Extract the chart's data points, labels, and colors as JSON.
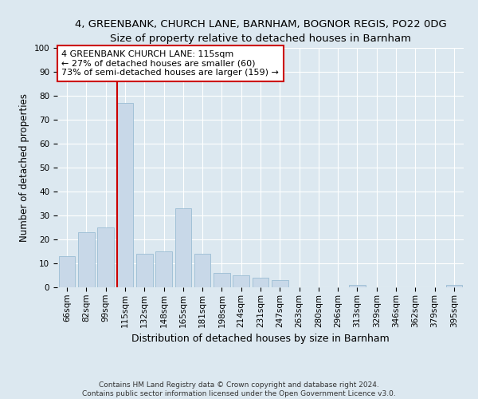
{
  "title": "4, GREENBANK, CHURCH LANE, BARNHAM, BOGNOR REGIS, PO22 0DG",
  "subtitle": "Size of property relative to detached houses in Barnham",
  "xlabel": "Distribution of detached houses by size in Barnham",
  "ylabel": "Number of detached properties",
  "categories": [
    "66sqm",
    "82sqm",
    "99sqm",
    "115sqm",
    "132sqm",
    "148sqm",
    "165sqm",
    "181sqm",
    "198sqm",
    "214sqm",
    "231sqm",
    "247sqm",
    "263sqm",
    "280sqm",
    "296sqm",
    "313sqm",
    "329sqm",
    "346sqm",
    "362sqm",
    "379sqm",
    "395sqm"
  ],
  "values": [
    13,
    23,
    25,
    77,
    14,
    15,
    33,
    14,
    6,
    5,
    4,
    3,
    0,
    0,
    0,
    1,
    0,
    0,
    0,
    0,
    1
  ],
  "bar_color": "#c8d8e8",
  "bar_edge_color": "#9bbdd4",
  "highlight_line_index": 3,
  "highlight_color": "#cc0000",
  "annotation_text": "4 GREENBANK CHURCH LANE: 115sqm\n← 27% of detached houses are smaller (60)\n73% of semi-detached houses are larger (159) →",
  "annotation_box_color": "#ffffff",
  "annotation_box_edge": "#cc0000",
  "ylim": [
    0,
    100
  ],
  "yticks": [
    0,
    10,
    20,
    30,
    40,
    50,
    60,
    70,
    80,
    90,
    100
  ],
  "background_color": "#dce8f0",
  "plot_bg_color": "#dce8f0",
  "footer": "Contains HM Land Registry data © Crown copyright and database right 2024.\nContains public sector information licensed under the Open Government Licence v3.0.",
  "title_fontsize": 9.5,
  "subtitle_fontsize": 9,
  "xlabel_fontsize": 9,
  "ylabel_fontsize": 8.5,
  "tick_fontsize": 7.5,
  "annotation_fontsize": 8,
  "footer_fontsize": 6.5
}
